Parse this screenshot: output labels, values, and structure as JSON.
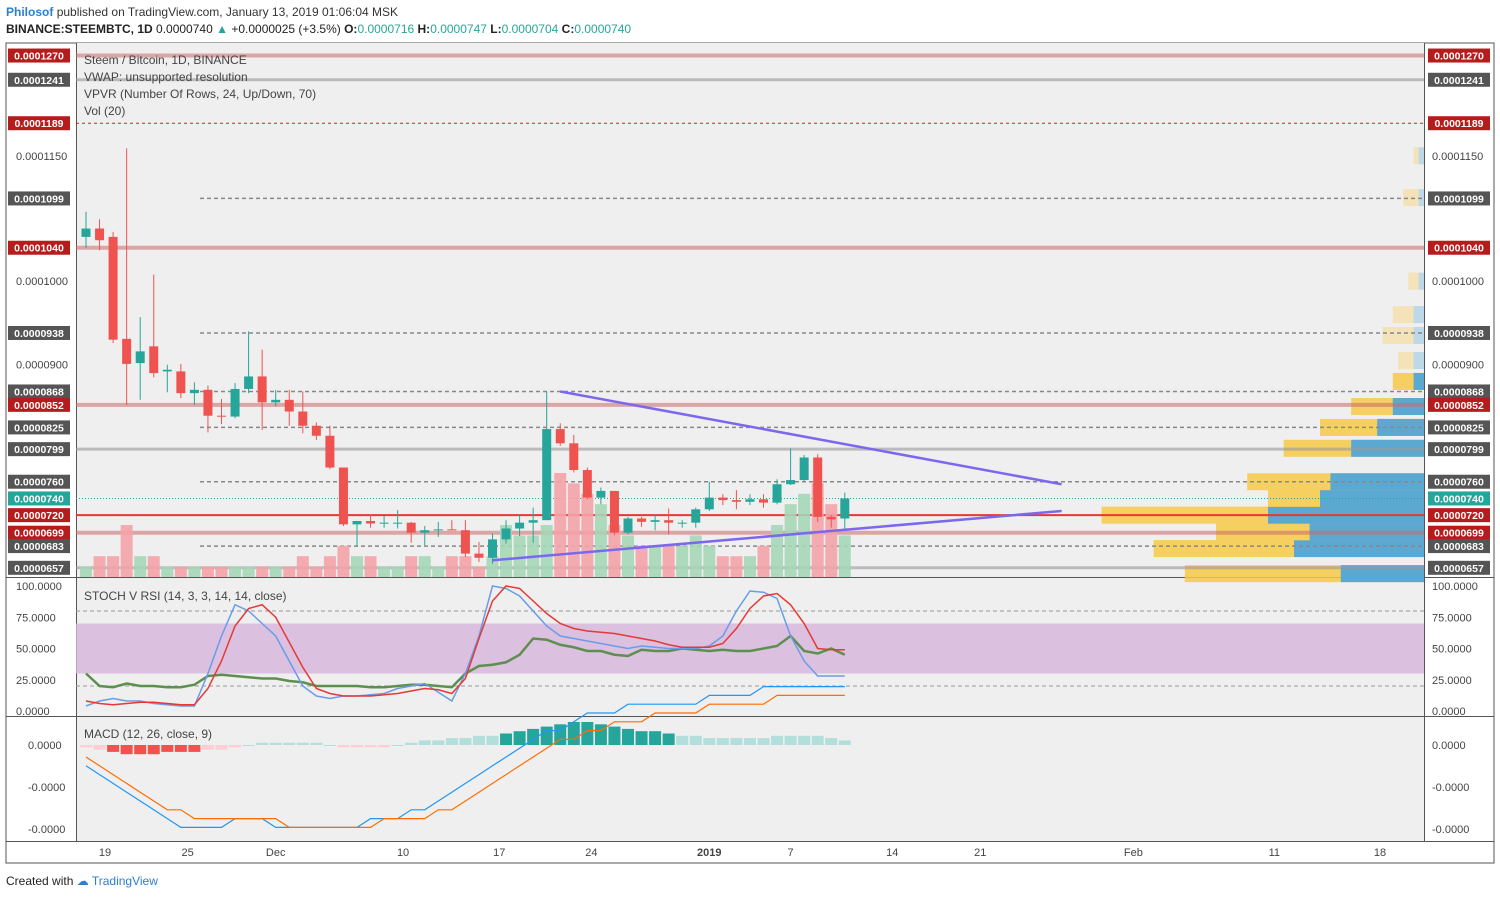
{
  "header": {
    "author": "Philosof",
    "published": "published on TradingView.com, January 13, 2019 01:06:04 MSK",
    "symbol": "BINANCE:STEEMBTC, 1D",
    "last": "0.0000740",
    "change": "+0.0000025 (+3.5%)",
    "o_label": "O:",
    "o_value": "0.0000716",
    "h_label": "H:",
    "h_value": "0.0000747",
    "l_label": "L:",
    "l_value": "0.0000704",
    "c_label": "C:",
    "c_value": "0.0000740"
  },
  "legend": {
    "title": "Steem / Bitcoin, 1D, BINANCE",
    "vwap": "VWAP: unsupported resolution",
    "vpvr": "VPVR (Number Of Rows, 24, Up/Down, 70)",
    "vol": "Vol (20)",
    "stoch": "STOCH V RSI (14, 3, 3, 14, 14, close)",
    "macd": "MACD (12, 26, close, 9)"
  },
  "footer": {
    "prefix": "Created with",
    "brand": "TradingView"
  },
  "colors": {
    "up": "#26a69a",
    "down": "#ef5350",
    "trend": "#7b68ee",
    "tag": "#b71c1c"
  },
  "chart_data": [
    {
      "type": "candlestick",
      "title": "Steem / Bitcoin, 1D, BINANCE",
      "ylim": [
        6.46e-05,
        0.0001285
      ],
      "y_tick_labels": [
        "0.0001150",
        "0.0001000",
        "0.0000900"
      ],
      "x_tick_labels": [
        "19",
        "25",
        "Dec",
        "10",
        "17",
        "24",
        "2019",
        "7",
        "14",
        "21",
        "Feb",
        "11",
        "18"
      ],
      "candles": [
        {
          "o": 0.0001053,
          "h": 0.0001083,
          "l": 0.000104,
          "c": 0.0001063
        },
        {
          "o": 0.0001063,
          "h": 0.0001074,
          "l": 0.0001037,
          "c": 0.0001049
        },
        {
          "o": 0.0001053,
          "h": 0.0001059,
          "l": 9.26e-05,
          "c": 9.3e-05
        },
        {
          "o": 9.31e-05,
          "h": 0.0001159,
          "l": 8.52e-05,
          "c": 9.01e-05
        },
        {
          "o": 9.02e-05,
          "h": 9.57e-05,
          "l": 8.58e-05,
          "c": 9.16e-05
        },
        {
          "o": 9.22e-05,
          "h": 0.0001008,
          "l": 8.85e-05,
          "c": 8.9e-05
        },
        {
          "o": 8.92e-05,
          "h": 9e-05,
          "l": 8.67e-05,
          "c": 8.94e-05
        },
        {
          "o": 8.92e-05,
          "h": 9.01e-05,
          "l": 8.6e-05,
          "c": 8.66e-05
        },
        {
          "o": 8.66e-05,
          "h": 8.79e-05,
          "l": 8.52e-05,
          "c": 8.7e-05
        },
        {
          "o": 8.7e-05,
          "h": 8.75e-05,
          "l": 8.19e-05,
          "c": 8.39e-05
        },
        {
          "o": 8.39e-05,
          "h": 8.59e-05,
          "l": 8.29e-05,
          "c": 8.38e-05
        },
        {
          "o": 8.38e-05,
          "h": 8.78e-05,
          "l": 8.36e-05,
          "c": 8.71e-05
        },
        {
          "o": 8.71e-05,
          "h": 9.4e-05,
          "l": 8.66e-05,
          "c": 8.86e-05
        },
        {
          "o": 8.86e-05,
          "h": 9.18e-05,
          "l": 8.22e-05,
          "c": 8.55e-05
        },
        {
          "o": 8.55e-05,
          "h": 8.7e-05,
          "l": 8.5e-05,
          "c": 8.58e-05
        },
        {
          "o": 8.58e-05,
          "h": 8.7e-05,
          "l": 8.27e-05,
          "c": 8.44e-05
        },
        {
          "o": 8.44e-05,
          "h": 8.68e-05,
          "l": 8.18e-05,
          "c": 8.27e-05
        },
        {
          "o": 8.27e-05,
          "h": 8.31e-05,
          "l": 8.1e-05,
          "c": 8.15e-05
        },
        {
          "o": 8.15e-05,
          "h": 8.27e-05,
          "l": 7.75e-05,
          "c": 7.77e-05
        },
        {
          "o": 7.77e-05,
          "h": 7.77e-05,
          "l": 7.07e-05,
          "c": 7.09e-05
        },
        {
          "o": 7.09e-05,
          "h": 7.12e-05,
          "l": 6.83e-05,
          "c": 7.13e-05
        },
        {
          "o": 7.13e-05,
          "h": 7.21e-05,
          "l": 7.05e-05,
          "c": 7.1e-05
        },
        {
          "o": 7.1e-05,
          "h": 7.19e-05,
          "l": 7.05e-05,
          "c": 7.11e-05
        },
        {
          "o": 7.11e-05,
          "h": 7.26e-05,
          "l": 7.04e-05,
          "c": 7.11e-05
        },
        {
          "o": 7.11e-05,
          "h": 7.12e-05,
          "l": 6.87e-05,
          "c": 6.99e-05
        },
        {
          "o": 6.99e-05,
          "h": 7.07e-05,
          "l": 6.84e-05,
          "c": 7.02e-05
        },
        {
          "o": 7.02e-05,
          "h": 7.12e-05,
          "l": 6.94e-05,
          "c": 7.03e-05
        },
        {
          "o": 7.03e-05,
          "h": 7.14e-05,
          "l": 7.02e-05,
          "c": 7.02e-05
        },
        {
          "o": 7.02e-05,
          "h": 7.14e-05,
          "l": 6.7e-05,
          "c": 6.74e-05
        },
        {
          "o": 6.74e-05,
          "h": 6.88e-05,
          "l": 6.64e-05,
          "c": 6.69e-05
        },
        {
          "o": 6.69e-05,
          "h": 6.98e-05,
          "l": 6.62e-05,
          "c": 6.91e-05
        },
        {
          "o": 6.91e-05,
          "h": 7.14e-05,
          "l": 6.86e-05,
          "c": 7.04e-05
        },
        {
          "o": 7.04e-05,
          "h": 7.2e-05,
          "l": 6.95e-05,
          "c": 7.11e-05
        },
        {
          "o": 7.11e-05,
          "h": 7.29e-05,
          "l": 6.87e-05,
          "c": 7.14e-05
        },
        {
          "o": 7.14e-05,
          "h": 8.68e-05,
          "l": 7.14e-05,
          "c": 8.23e-05
        },
        {
          "o": 8.23e-05,
          "h": 8.3e-05,
          "l": 8.03e-05,
          "c": 8.06e-05
        },
        {
          "o": 8.06e-05,
          "h": 8.16e-05,
          "l": 7.71e-05,
          "c": 7.74e-05
        },
        {
          "o": 7.74e-05,
          "h": 7.77e-05,
          "l": 7.39e-05,
          "c": 7.41e-05
        },
        {
          "o": 7.41e-05,
          "h": 7.53e-05,
          "l": 7.33e-05,
          "c": 7.49e-05
        },
        {
          "o": 7.49e-05,
          "h": 7.49e-05,
          "l": 6.96e-05,
          "c": 6.99e-05
        },
        {
          "o": 6.99e-05,
          "h": 7.18e-05,
          "l": 6.97e-05,
          "c": 7.16e-05
        },
        {
          "o": 7.16e-05,
          "h": 7.18e-05,
          "l": 7.06e-05,
          "c": 7.12e-05
        },
        {
          "o": 7.12e-05,
          "h": 7.2e-05,
          "l": 7.02e-05,
          "c": 7.14e-05
        },
        {
          "o": 7.14e-05,
          "h": 7.28e-05,
          "l": 6.97e-05,
          "c": 7.11e-05
        },
        {
          "o": 7.11e-05,
          "h": 7.14e-05,
          "l": 7.05e-05,
          "c": 7.11e-05
        },
        {
          "o": 7.11e-05,
          "h": 7.29e-05,
          "l": 7.05e-05,
          "c": 7.27e-05
        },
        {
          "o": 7.27e-05,
          "h": 7.6e-05,
          "l": 7.25e-05,
          "c": 7.41e-05
        },
        {
          "o": 7.41e-05,
          "h": 7.45e-05,
          "l": 7.32e-05,
          "c": 7.38e-05
        },
        {
          "o": 7.38e-05,
          "h": 7.5e-05,
          "l": 7.27e-05,
          "c": 7.36e-05
        },
        {
          "o": 7.36e-05,
          "h": 7.45e-05,
          "l": 7.32e-05,
          "c": 7.39e-05
        },
        {
          "o": 7.39e-05,
          "h": 7.45e-05,
          "l": 7.29e-05,
          "c": 7.35e-05
        },
        {
          "o": 7.35e-05,
          "h": 7.63e-05,
          "l": 7.33e-05,
          "c": 7.57e-05
        },
        {
          "o": 7.57e-05,
          "h": 8e-05,
          "l": 7.56e-05,
          "c": 7.62e-05
        },
        {
          "o": 7.62e-05,
          "h": 7.92e-05,
          "l": 7.61e-05,
          "c": 7.89e-05
        },
        {
          "o": 7.89e-05,
          "h": 7.93e-05,
          "l": 7.12e-05,
          "c": 7.18e-05
        },
        {
          "o": 7.18e-05,
          "h": 7.2e-05,
          "l": 7.05e-05,
          "c": 7.15e-05
        },
        {
          "o": 7.16e-05,
          "h": 7.47e-05,
          "l": 7.04e-05,
          "c": 7.4e-05
        }
      ],
      "price_tags_left": [
        {
          "value": 0.000127,
          "label": "0.0001270",
          "style": "red"
        },
        {
          "value": 0.0001241,
          "label": "0.0001241",
          "style": "gray"
        },
        {
          "value": 0.0001189,
          "label": "0.0001189",
          "style": "red"
        },
        {
          "value": 0.0001099,
          "label": "0.0001099",
          "style": "gray"
        },
        {
          "value": 0.000104,
          "label": "0.0001040",
          "style": "red"
        },
        {
          "value": 9.38e-05,
          "label": "0.0000938",
          "style": "gray"
        },
        {
          "value": 8.68e-05,
          "label": "0.0000868",
          "style": "gray"
        },
        {
          "value": 8.52e-05,
          "label": "0.0000852",
          "style": "red"
        },
        {
          "value": 8.25e-05,
          "label": "0.0000825",
          "style": "gray"
        },
        {
          "value": 7.99e-05,
          "label": "0.0000799",
          "style": "gray"
        },
        {
          "value": 7.6e-05,
          "label": "0.0000760",
          "style": "gray"
        },
        {
          "value": 7.4e-05,
          "label": "0.0000740",
          "style": "teal"
        },
        {
          "value": 7.2e-05,
          "label": "0.0000720",
          "style": "red"
        },
        {
          "value": 6.99e-05,
          "label": "0.0000699",
          "style": "red"
        },
        {
          "value": 6.83e-05,
          "label": "0.0000683",
          "style": "gray"
        },
        {
          "value": 6.57e-05,
          "label": "0.0000657",
          "style": "gray"
        }
      ],
      "horizontal_lines": [
        {
          "value": 0.000127,
          "kind": "band"
        },
        {
          "value": 0.0001241,
          "kind": "grayband"
        },
        {
          "value": 0.0001189,
          "kind": "reddash"
        },
        {
          "value": 0.0001099,
          "kind": "dash"
        },
        {
          "value": 0.000104,
          "kind": "band"
        },
        {
          "value": 9.38e-05,
          "kind": "dash"
        },
        {
          "value": 8.68e-05,
          "kind": "dash"
        },
        {
          "value": 8.52e-05,
          "kind": "band"
        },
        {
          "value": 8.25e-05,
          "kind": "dash"
        },
        {
          "value": 7.99e-05,
          "kind": "grayband"
        },
        {
          "value": 7.6e-05,
          "kind": "dash"
        },
        {
          "value": 7.4e-05,
          "kind": "tealdot"
        },
        {
          "value": 7.2e-05,
          "kind": "redsolid"
        },
        {
          "value": 6.99e-05,
          "kind": "band"
        },
        {
          "value": 6.83e-05,
          "kind": "dash"
        },
        {
          "value": 6.57e-05,
          "kind": "grayband"
        }
      ],
      "trendlines": [
        {
          "x1": 35,
          "y1": 8.68e-05,
          "x2": 72,
          "y2": 7.57e-05
        },
        {
          "x1": 30,
          "y1": 6.66e-05,
          "x2": 72,
          "y2": 7.25e-05
        }
      ]
    },
    {
      "type": "bar",
      "title": "Vol (20)",
      "values": [
        1,
        2,
        2,
        5,
        2,
        2,
        1,
        1,
        1,
        1,
        1,
        1,
        1,
        1,
        1,
        1,
        2,
        1,
        2,
        3,
        2,
        2,
        1,
        1,
        2,
        2,
        1,
        2,
        2,
        1,
        2,
        5,
        4,
        4,
        5,
        10,
        9,
        8,
        7,
        5,
        4,
        3,
        3,
        3,
        3,
        4,
        3,
        2,
        2,
        2,
        3,
        5,
        7,
        8,
        9,
        7,
        4
      ],
      "ylim": [
        0,
        10
      ]
    },
    {
      "type": "line",
      "title": "STOCH V RSI (14, 3, 3, 14, 14, close)",
      "ylim": [
        0,
        100
      ],
      "y_tick_labels": [
        "100.0000",
        "75.0000",
        "50.0000",
        "25.0000",
        "0.0000"
      ],
      "series": [
        {
          "name": "",
          "values": [
            30,
            20,
            19,
            22,
            20,
            20,
            19,
            19,
            21,
            28,
            29,
            28,
            27,
            26,
            26,
            24,
            23,
            20,
            20,
            20,
            20,
            19,
            19,
            20,
            21,
            21,
            20,
            19,
            30,
            36,
            37,
            39,
            45,
            58,
            57,
            53,
            51,
            48,
            48,
            45,
            44,
            49,
            48,
            48,
            50,
            49,
            48,
            49,
            48,
            48,
            50,
            52,
            60,
            48,
            46,
            50,
            45
          ]
        },
        {
          "name": "",
          "values": [
            4,
            8,
            10,
            8,
            8,
            6,
            5,
            4,
            4,
            30,
            60,
            85,
            80,
            70,
            60,
            40,
            20,
            12,
            10,
            12,
            12,
            13,
            14,
            18,
            20,
            22,
            15,
            8,
            30,
            60,
            100,
            98,
            92,
            80,
            68,
            60,
            58,
            56,
            54,
            52,
            50,
            52,
            51,
            50,
            50,
            50,
            52,
            60,
            80,
            96,
            95,
            90,
            60,
            40,
            28,
            28,
            28
          ]
        },
        {
          "name": "",
          "values": [
            8,
            6,
            5,
            6,
            7,
            7,
            6,
            5,
            5,
            18,
            40,
            68,
            82,
            85,
            75,
            55,
            35,
            18,
            14,
            12,
            12,
            12,
            13,
            14,
            16,
            18,
            17,
            14,
            26,
            58,
            88,
            100,
            98,
            88,
            78,
            70,
            66,
            64,
            63,
            62,
            60,
            58,
            56,
            53,
            51,
            51,
            51,
            54,
            66,
            82,
            92,
            94,
            85,
            70,
            50,
            49,
            49
          ]
        }
      ],
      "bands": [
        20,
        80
      ]
    },
    {
      "type": "bar",
      "title": "MACD (12, 26, close, 9)",
      "values": [
        -1,
        -2,
        -3,
        -4,
        -4,
        -4,
        -3,
        -3,
        -3,
        -2,
        -2,
        -1,
        0,
        1,
        1,
        1,
        1,
        1,
        0,
        -1,
        -1,
        -1,
        -1,
        0,
        1,
        2,
        2,
        3,
        3,
        4,
        4,
        5,
        6,
        7,
        8,
        9,
        10,
        10,
        9,
        8,
        7,
        6,
        6,
        5,
        4,
        4,
        3,
        3,
        3,
        3,
        3,
        4,
        4,
        4,
        4,
        3,
        2
      ],
      "series": [
        {
          "name": "",
          "values": [
            -1,
            -2,
            -3,
            -4,
            -5,
            -6,
            -7,
            -8,
            -8,
            -8,
            -8,
            -7,
            -7,
            -7,
            -8,
            -8,
            -8,
            -8,
            -8,
            -8,
            -8,
            -7,
            -7,
            -7,
            -6,
            -6,
            -5,
            -4,
            -3,
            -2,
            -1,
            0,
            1,
            2,
            3,
            3,
            4,
            5,
            5,
            5,
            6,
            6,
            6,
            6,
            6,
            6,
            7,
            7,
            7,
            7,
            8,
            8,
            8,
            8,
            8,
            8,
            8
          ]
        },
        {
          "name": "",
          "values": [
            0,
            -1,
            -2,
            -3,
            -4,
            -5,
            -6,
            -6,
            -7,
            -7,
            -7,
            -7,
            -7,
            -7,
            -7,
            -8,
            -8,
            -8,
            -8,
            -8,
            -8,
            -8,
            -7,
            -7,
            -7,
            -7,
            -6,
            -6,
            -5,
            -4,
            -3,
            -2,
            -1,
            0,
            1,
            2,
            2,
            3,
            3,
            4,
            4,
            4,
            5,
            5,
            5,
            5,
            6,
            6,
            6,
            6,
            6,
            7,
            7,
            7,
            7,
            7,
            7
          ]
        }
      ],
      "y_tick_labels": [
        "0.0000",
        "-0.0000",
        "-0.0000"
      ]
    }
  ]
}
